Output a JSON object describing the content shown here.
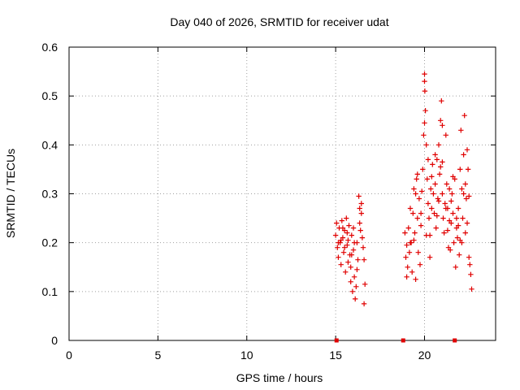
{
  "chart_data": {
    "type": "scatter",
    "title": "Day 040 of 2026, SRMTID for receiver udat",
    "xlabel": "GPS time / hours",
    "ylabel": "SRMTID / TECUs",
    "xlim": [
      0,
      24
    ],
    "ylim": [
      0,
      0.6
    ],
    "x_ticks": [
      0,
      5,
      10,
      15,
      20
    ],
    "y_ticks": [
      0,
      0.1,
      0.2,
      0.3,
      0.4,
      0.5,
      0.6
    ],
    "x_tick_labels": [
      "0",
      "5",
      "10",
      "15",
      "20"
    ],
    "y_tick_labels": [
      "0",
      "0.1",
      "0.2",
      "0.3",
      "0.4",
      "0.5",
      "0.6"
    ],
    "grid": true,
    "marker": "+",
    "color": "#e00000",
    "series": [
      {
        "name": "SRMTID",
        "points": [
          [
            15.0,
            0.215
          ],
          [
            15.05,
            0.24
          ],
          [
            15.1,
            0.19
          ],
          [
            15.15,
            0.17
          ],
          [
            15.2,
            0.23
          ],
          [
            15.25,
            0.2
          ],
          [
            15.3,
            0.155
          ],
          [
            15.35,
            0.245
          ],
          [
            15.4,
            0.21
          ],
          [
            15.45,
            0.18
          ],
          [
            15.5,
            0.225
          ],
          [
            15.55,
            0.14
          ],
          [
            15.6,
            0.25
          ],
          [
            15.65,
            0.195
          ],
          [
            15.7,
            0.16
          ],
          [
            15.75,
            0.235
          ],
          [
            15.8,
            0.175
          ],
          [
            15.85,
            0.12
          ],
          [
            15.9,
            0.215
          ],
          [
            15.95,
            0.1
          ],
          [
            16.0,
            0.185
          ],
          [
            16.05,
            0.13
          ],
          [
            16.1,
            0.085
          ],
          [
            16.15,
            0.11
          ],
          [
            16.2,
            0.2
          ],
          [
            16.25,
            0.165
          ],
          [
            16.3,
            0.295
          ],
          [
            16.35,
            0.27
          ],
          [
            16.4,
            0.225
          ],
          [
            16.45,
            0.26
          ],
          [
            16.5,
            0.21
          ],
          [
            16.55,
            0.19
          ],
          [
            16.6,
            0.075
          ],
          [
            16.65,
            0.115
          ],
          [
            15.3,
            0.205
          ],
          [
            15.5,
            0.19
          ],
          [
            15.7,
            0.205
          ],
          [
            15.9,
            0.175
          ],
          [
            16.0,
            0.23
          ],
          [
            16.2,
            0.145
          ],
          [
            15.15,
            0.2
          ],
          [
            15.4,
            0.23
          ],
          [
            15.65,
            0.22
          ],
          [
            15.85,
            0.15
          ],
          [
            16.05,
            0.2
          ],
          [
            16.35,
            0.24
          ],
          [
            16.45,
            0.28
          ],
          [
            16.6,
            0.165
          ],
          [
            18.9,
            0.22
          ],
          [
            18.95,
            0.17
          ],
          [
            19.0,
            0.195
          ],
          [
            19.05,
            0.15
          ],
          [
            19.1,
            0.23
          ],
          [
            19.15,
            0.18
          ],
          [
            19.2,
            0.27
          ],
          [
            19.25,
            0.2
          ],
          [
            19.3,
            0.14
          ],
          [
            19.35,
            0.26
          ],
          [
            19.4,
            0.31
          ],
          [
            19.45,
            0.22
          ],
          [
            19.5,
            0.125
          ],
          [
            19.55,
            0.33
          ],
          [
            19.6,
            0.25
          ],
          [
            19.65,
            0.18
          ],
          [
            19.7,
            0.29
          ],
          [
            19.75,
            0.155
          ],
          [
            19.8,
            0.235
          ],
          [
            19.85,
            0.305
          ],
          [
            19.9,
            0.35
          ],
          [
            19.95,
            0.42
          ],
          [
            20.0,
            0.545
          ],
          [
            20.02,
            0.51
          ],
          [
            20.05,
            0.47
          ],
          [
            20.1,
            0.4
          ],
          [
            20.15,
            0.33
          ],
          [
            20.2,
            0.28
          ],
          [
            20.25,
            0.25
          ],
          [
            20.3,
            0.17
          ],
          [
            20.35,
            0.31
          ],
          [
            20.4,
            0.27
          ],
          [
            20.45,
            0.36
          ],
          [
            20.5,
            0.3
          ],
          [
            20.55,
            0.26
          ],
          [
            20.6,
            0.32
          ],
          [
            20.65,
            0.23
          ],
          [
            20.7,
            0.37
          ],
          [
            20.75,
            0.29
          ],
          [
            20.8,
            0.4
          ],
          [
            20.85,
            0.34
          ],
          [
            20.9,
            0.45
          ],
          [
            20.95,
            0.49
          ],
          [
            21.0,
            0.3
          ],
          [
            21.05,
            0.25
          ],
          [
            21.1,
            0.22
          ],
          [
            21.15,
            0.28
          ],
          [
            21.2,
            0.42
          ],
          [
            21.25,
            0.32
          ],
          [
            21.3,
            0.27
          ],
          [
            21.35,
            0.19
          ],
          [
            21.4,
            0.31
          ],
          [
            21.45,
            0.185
          ],
          [
            21.5,
            0.24
          ],
          [
            21.55,
            0.3
          ],
          [
            21.6,
            0.26
          ],
          [
            21.65,
            0.2
          ],
          [
            21.7,
            0.33
          ],
          [
            21.75,
            0.15
          ],
          [
            21.8,
            0.23
          ],
          [
            21.85,
            0.21
          ],
          [
            21.9,
            0.27
          ],
          [
            21.95,
            0.175
          ],
          [
            22.0,
            0.35
          ],
          [
            22.05,
            0.43
          ],
          [
            22.1,
            0.31
          ],
          [
            22.15,
            0.25
          ],
          [
            22.2,
            0.38
          ],
          [
            22.25,
            0.46
          ],
          [
            22.3,
            0.22
          ],
          [
            22.35,
            0.29
          ],
          [
            22.4,
            0.24
          ],
          [
            22.45,
            0.35
          ],
          [
            22.5,
            0.17
          ],
          [
            22.55,
            0.155
          ],
          [
            22.6,
            0.135
          ],
          [
            22.65,
            0.105
          ],
          [
            19.6,
            0.34
          ],
          [
            20.0,
            0.445
          ],
          [
            20.3,
            0.215
          ],
          [
            20.6,
            0.38
          ],
          [
            20.9,
            0.355
          ],
          [
            21.2,
            0.27
          ],
          [
            21.5,
            0.285
          ],
          [
            21.8,
            0.25
          ],
          [
            22.1,
            0.2
          ],
          [
            22.4,
            0.39
          ],
          [
            19.2,
            0.2
          ],
          [
            19.5,
            0.3
          ],
          [
            19.8,
            0.26
          ],
          [
            20.1,
            0.215
          ],
          [
            20.4,
            0.335
          ],
          [
            20.7,
            0.255
          ],
          [
            21.0,
            0.365
          ],
          [
            21.3,
            0.225
          ],
          [
            21.6,
            0.335
          ],
          [
            21.9,
            0.235
          ],
          [
            22.2,
            0.3
          ],
          [
            22.5,
            0.295
          ],
          [
            19.0,
            0.13
          ],
          [
            19.4,
            0.205
          ],
          [
            20.2,
            0.37
          ],
          [
            20.8,
            0.285
          ],
          [
            21.4,
            0.245
          ],
          [
            22.0,
            0.205
          ],
          [
            22.3,
            0.32
          ],
          [
            20.0,
            0.53
          ],
          [
            21.0,
            0.44
          ]
        ]
      }
    ],
    "zero_points": [
      15.05,
      18.8,
      21.7
    ]
  }
}
